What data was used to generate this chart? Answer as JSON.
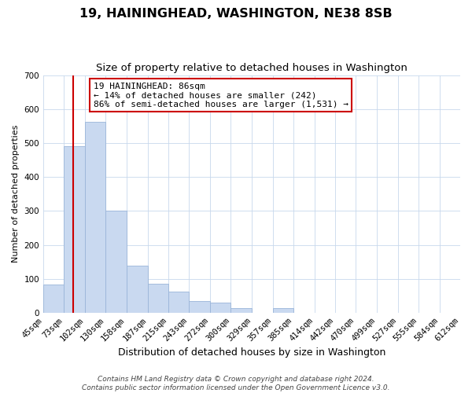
{
  "title": "19, HAININGHEAD, WASHINGTON, NE38 8SB",
  "subtitle": "Size of property relative to detached houses in Washington",
  "xlabel": "Distribution of detached houses by size in Washington",
  "ylabel": "Number of detached properties",
  "bar_color": "#c9d9f0",
  "bar_edge_color": "#9ab5d9",
  "vline_x": 86,
  "vline_color": "#cc0000",
  "annotation_title": "19 HAININGHEAD: 86sqm",
  "annotation_line1": "← 14% of detached houses are smaller (242)",
  "annotation_line2": "86% of semi-detached houses are larger (1,531) →",
  "annotation_box_color": "#ffffff",
  "annotation_box_edge": "#cc0000",
  "bin_edges": [
    45,
    73,
    102,
    130,
    158,
    187,
    215,
    243,
    272,
    300,
    329,
    357,
    385,
    414,
    442,
    470,
    499,
    527,
    555,
    584,
    612
  ],
  "bin_heights": [
    83,
    490,
    562,
    300,
    138,
    85,
    63,
    35,
    30,
    13,
    0,
    13,
    0,
    0,
    0,
    0,
    0,
    0,
    0,
    0
  ],
  "ylim": [
    0,
    700
  ],
  "yticks": [
    0,
    100,
    200,
    300,
    400,
    500,
    600,
    700
  ],
  "footer1": "Contains HM Land Registry data © Crown copyright and database right 2024.",
  "footer2": "Contains public sector information licensed under the Open Government Licence v3.0.",
  "title_fontsize": 11.5,
  "subtitle_fontsize": 9.5,
  "xlabel_fontsize": 9,
  "ylabel_fontsize": 8,
  "tick_fontsize": 7.5,
  "footer_fontsize": 6.5
}
